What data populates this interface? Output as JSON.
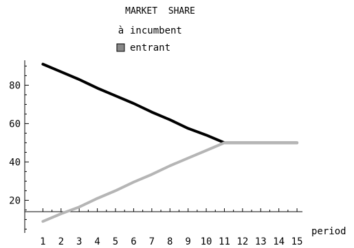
{
  "chart_data": {
    "type": "line",
    "title": "MARKET  SHARE",
    "xlabel": "period",
    "ylabel": "",
    "x": [
      1,
      2,
      3,
      4,
      5,
      6,
      7,
      8,
      9,
      10,
      11,
      12,
      13,
      14,
      15
    ],
    "xlim": [
      0,
      15.3
    ],
    "ylim": [
      3,
      93
    ],
    "xticks": [
      1,
      2,
      3,
      4,
      5,
      6,
      7,
      8,
      9,
      10,
      11,
      12,
      13,
      14,
      15
    ],
    "yticks": [
      20,
      40,
      60,
      80
    ],
    "grid": false,
    "legend_position": "top-center",
    "series": [
      {
        "name": "incumbent",
        "legend_marker": "à",
        "color": "#000000",
        "values": [
          91,
          87,
          83,
          78.5,
          74.5,
          70.5,
          66,
          62,
          57.5,
          54,
          50,
          50,
          50,
          50,
          50
        ]
      },
      {
        "name": "entrant",
        "legend_marker": "■",
        "color": "#b5b5b5",
        "values": [
          9,
          13,
          16.5,
          21,
          25,
          29.5,
          33.5,
          38,
          42,
          46,
          50,
          50,
          50,
          50,
          50
        ]
      }
    ]
  }
}
